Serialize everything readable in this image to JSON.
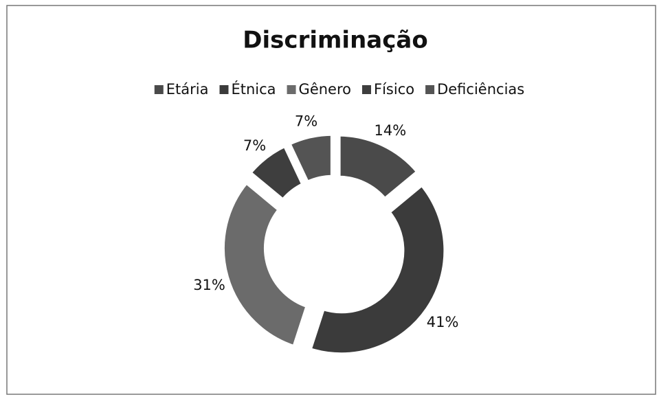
{
  "chart_data": {
    "type": "donut",
    "title": "Discriminação",
    "categories": [
      "Etária",
      "Étnica",
      "Gênero",
      "Físico",
      "Deficiências"
    ],
    "values": [
      14,
      41,
      31,
      7,
      7
    ],
    "value_labels": [
      "14%",
      "41%",
      "31%",
      "7%",
      "7%"
    ],
    "colors": [
      "#4a4a4a",
      "#3b3b3b",
      "#6b6b6b",
      "#3e3e3e",
      "#545454"
    ],
    "legend": "top"
  }
}
